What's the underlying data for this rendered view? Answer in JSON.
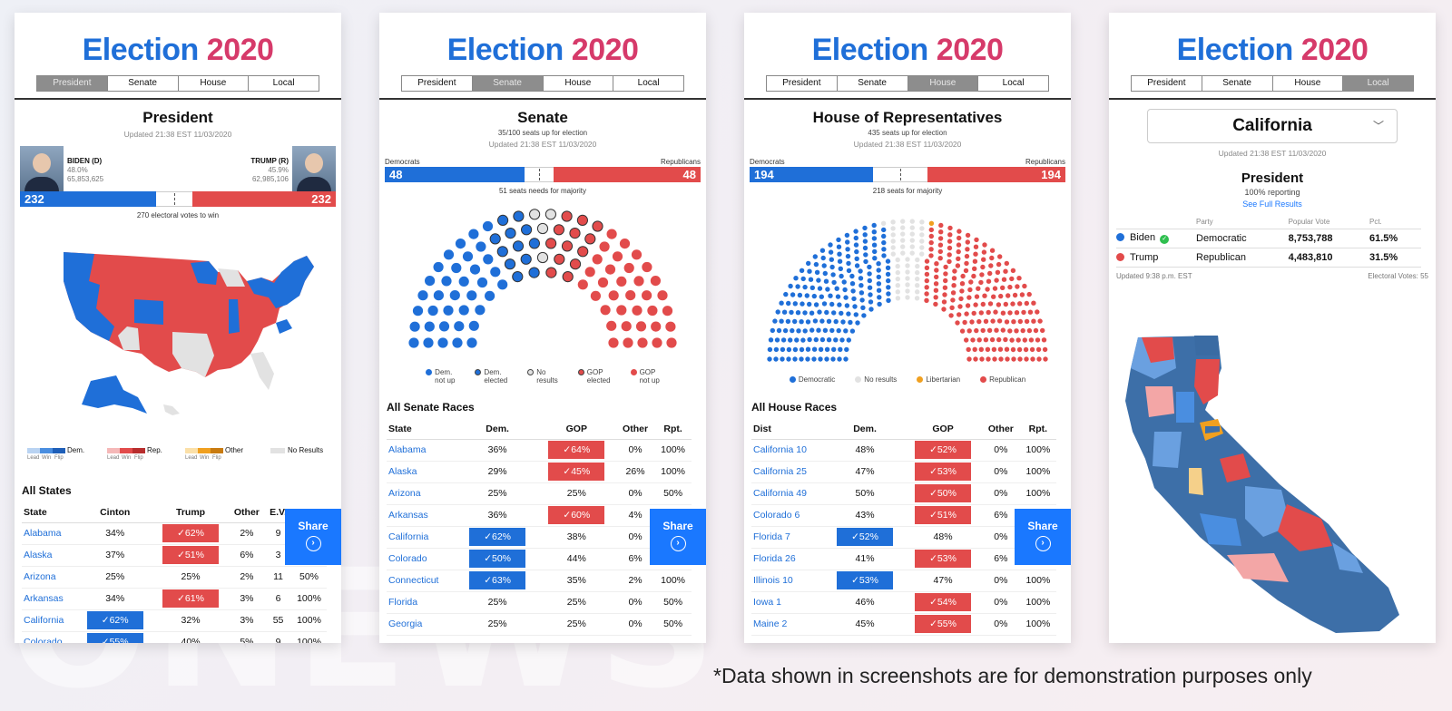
{
  "brand": {
    "part1": "Election",
    "part2": "2020"
  },
  "tabs": [
    "President",
    "Senate",
    "House",
    "Local"
  ],
  "share": {
    "label": "Share",
    "icon": "chevron-right-circle-icon"
  },
  "colors": {
    "dem": "#1f6fd8",
    "rep": "#e24b4b",
    "none": "#e2e2e2",
    "lib": "#f0a020",
    "share": "#1a78ff"
  },
  "president": {
    "title": "President",
    "updated": "Updated 21:38 EST 11/03/2020",
    "biden": {
      "name": "BIDEN (D)",
      "pct": "48.0%",
      "votes": "65,853,625",
      "ev": "232"
    },
    "trump": {
      "name": "TRUMP (R)",
      "pct": "45.9%",
      "votes": "62,985,106",
      "ev": "232"
    },
    "to_win": "270 electoral votes to win",
    "legend": {
      "dem": "Dem.",
      "rep": "Rep.",
      "other": "Other",
      "none": "No Results",
      "lead": "Lead",
      "win": "Win",
      "flip": "Flip"
    },
    "section": "All States",
    "headers": [
      "State",
      "Cinton",
      "Trump",
      "Other",
      "E.V.",
      "Rpt."
    ],
    "rows": [
      [
        "Alabama",
        "34%",
        "62%",
        "2%",
        "9",
        "100%",
        "r"
      ],
      [
        "Alaska",
        "37%",
        "51%",
        "6%",
        "3",
        "100%",
        "r"
      ],
      [
        "Arizona",
        "25%",
        "25%",
        "2%",
        "11",
        "50%",
        ""
      ],
      [
        "Arkansas",
        "34%",
        "61%",
        "3%",
        "6",
        "100%",
        "r"
      ],
      [
        "California",
        "62%",
        "32%",
        "3%",
        "55",
        "100%",
        "d"
      ],
      [
        "Colorado",
        "55%",
        "40%",
        "5%",
        "9",
        "100%",
        "d"
      ]
    ]
  },
  "senate": {
    "title": "Senate",
    "subtitle": "35/100 seats up for election",
    "updated": "Updated 21:38 EST 11/03/2020",
    "dem_label": "Democrats",
    "rep_label": "Republicans",
    "dem": "48",
    "rep": "48",
    "majority": "51 seats needs for majority",
    "seats": {
      "dem_not_up": 36,
      "dem_elected": 12,
      "no_results": 4,
      "gop_elected": 13,
      "gop_not_up": 35
    },
    "legend": [
      {
        "label": "Dem.\nnot up",
        "color": "#1f6fd8",
        "style": "fill"
      },
      {
        "label": "Dem.\nelected",
        "color": "#1f6fd8",
        "style": "ring"
      },
      {
        "label": "No\nresults",
        "color": "#e2e2e2",
        "style": "ring"
      },
      {
        "label": "GOP\nelected",
        "color": "#e24b4b",
        "style": "ring"
      },
      {
        "label": "GOP\nnot up",
        "color": "#e24b4b",
        "style": "fill"
      }
    ],
    "section": "All Senate Races",
    "headers": [
      "State",
      "Dem.",
      "GOP",
      "Other",
      "Rpt."
    ],
    "rows": [
      [
        "Alabama",
        "36%",
        "64%",
        "0%",
        "100%",
        "r"
      ],
      [
        "Alaska",
        "29%",
        "45%",
        "26%",
        "100%",
        "r"
      ],
      [
        "Arizona",
        "25%",
        "25%",
        "0%",
        "50%",
        ""
      ],
      [
        "Arkansas",
        "36%",
        "60%",
        "4%",
        "100%",
        "r"
      ],
      [
        "California",
        "62%",
        "38%",
        "0%",
        "100%",
        "d"
      ],
      [
        "Colorado",
        "50%",
        "44%",
        "6%",
        "100%",
        "d"
      ],
      [
        "Connecticut",
        "63%",
        "35%",
        "2%",
        "100%",
        "d"
      ],
      [
        "Florida",
        "25%",
        "25%",
        "0%",
        "50%",
        ""
      ],
      [
        "Georgia",
        "25%",
        "25%",
        "0%",
        "50%",
        ""
      ]
    ]
  },
  "house": {
    "title": "House of Representatives",
    "subtitle": "435 seats up for election",
    "updated": "Updated 21:38 EST 11/03/2020",
    "dem_label": "Democrats",
    "rep_label": "Republicans",
    "dem": "194",
    "rep": "194",
    "majority": "218 seats for majority",
    "seats": {
      "dem": 194,
      "none": 46,
      "lib": 1,
      "rep": 194
    },
    "legend": [
      {
        "label": "Democratic",
        "color": "#1f6fd8"
      },
      {
        "label": "No results",
        "color": "#e2e2e2"
      },
      {
        "label": "Libertarian",
        "color": "#f0a020"
      },
      {
        "label": "Republican",
        "color": "#e24b4b"
      }
    ],
    "section": "All House Races",
    "headers": [
      "Dist",
      "Dem.",
      "GOP",
      "Other",
      "Rpt."
    ],
    "rows": [
      [
        "California 10",
        "48%",
        "52%",
        "0%",
        "100%",
        "r"
      ],
      [
        "California 25",
        "47%",
        "53%",
        "0%",
        "100%",
        "r"
      ],
      [
        "California 49",
        "50%",
        "50%",
        "0%",
        "100%",
        "r"
      ],
      [
        "Colorado 6",
        "43%",
        "51%",
        "6%",
        "100%",
        "r"
      ],
      [
        "Florida 7",
        "52%",
        "48%",
        "0%",
        "100%",
        "d"
      ],
      [
        "Florida 26",
        "41%",
        "53%",
        "6%",
        "100%",
        "r"
      ],
      [
        "Illinois 10",
        "53%",
        "47%",
        "0%",
        "100%",
        "d"
      ],
      [
        "Iowa 1",
        "46%",
        "54%",
        "0%",
        "100%",
        "r"
      ],
      [
        "Maine 2",
        "45%",
        "55%",
        "0%",
        "100%",
        "r"
      ]
    ]
  },
  "local": {
    "state": "California",
    "updated": "Updated 21:38 EST 11/03/2020",
    "race": "President",
    "reporting": "100% reporting",
    "full_results": "See Full Results",
    "headers": [
      "",
      "Party",
      "Popular Vote",
      "Pct."
    ],
    "rows": [
      {
        "name": "Biden",
        "party": "Democratic",
        "votes": "8,753,788",
        "pct": "61.5%",
        "color": "#1f6fd8",
        "winner": true
      },
      {
        "name": "Trump",
        "party": "Republican",
        "votes": "4,483,810",
        "pct": "31.5%",
        "color": "#e24b4b",
        "winner": false
      }
    ],
    "footer_left": "Updated 9:38 p.m. EST",
    "footer_right": "Electoral Votes: 55"
  },
  "disclaimer": "*Data shown in screenshots are for demonstration purposes only"
}
